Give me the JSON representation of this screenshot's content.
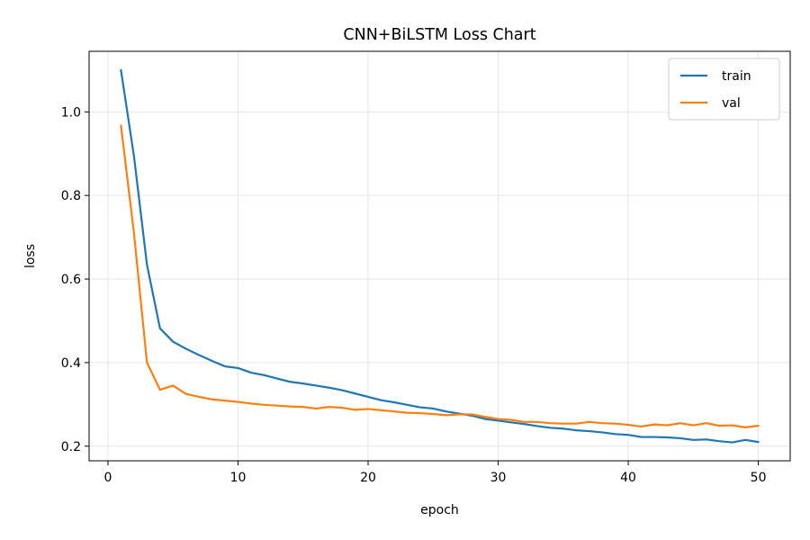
{
  "chart_data": {
    "type": "line",
    "title": "CNN+BiLSTM Loss Chart",
    "xlabel": "epoch",
    "ylabel": "loss",
    "xlim": [
      -1.45,
      52.45
    ],
    "ylim": [
      0.165,
      1.145
    ],
    "xticks": [
      0,
      10,
      20,
      30,
      40,
      50
    ],
    "yticks": [
      0.2,
      0.4,
      0.6,
      0.8,
      1.0
    ],
    "grid": true,
    "legend_position": "upper right",
    "x": [
      1,
      2,
      3,
      4,
      5,
      6,
      7,
      8,
      9,
      10,
      11,
      12,
      13,
      14,
      15,
      16,
      17,
      18,
      19,
      20,
      21,
      22,
      23,
      24,
      25,
      26,
      27,
      28,
      29,
      30,
      31,
      32,
      33,
      34,
      35,
      36,
      37,
      38,
      39,
      40,
      41,
      42,
      43,
      44,
      45,
      46,
      47,
      48,
      49,
      50
    ],
    "series": [
      {
        "name": "train",
        "color": "#1f77b4",
        "values": [
          1.1,
          0.894,
          0.634,
          0.482,
          0.45,
          0.433,
          0.418,
          0.404,
          0.391,
          0.387,
          0.376,
          0.37,
          0.362,
          0.354,
          0.35,
          0.345,
          0.34,
          0.334,
          0.326,
          0.318,
          0.31,
          0.305,
          0.299,
          0.293,
          0.29,
          0.283,
          0.278,
          0.273,
          0.265,
          0.261,
          0.257,
          0.253,
          0.248,
          0.244,
          0.242,
          0.238,
          0.236,
          0.233,
          0.229,
          0.227,
          0.222,
          0.222,
          0.221,
          0.219,
          0.215,
          0.216,
          0.212,
          0.209,
          0.215,
          0.21
        ]
      },
      {
        "name": "val",
        "color": "#ff7f0e",
        "values": [
          0.967,
          0.71,
          0.4,
          0.335,
          0.345,
          0.325,
          0.318,
          0.312,
          0.309,
          0.306,
          0.302,
          0.299,
          0.297,
          0.295,
          0.294,
          0.29,
          0.294,
          0.292,
          0.287,
          0.289,
          0.286,
          0.283,
          0.28,
          0.279,
          0.277,
          0.274,
          0.276,
          0.276,
          0.27,
          0.265,
          0.263,
          0.258,
          0.258,
          0.255,
          0.254,
          0.254,
          0.258,
          0.255,
          0.254,
          0.251,
          0.247,
          0.252,
          0.25,
          0.255,
          0.25,
          0.255,
          0.249,
          0.25,
          0.245,
          0.249
        ]
      }
    ]
  }
}
